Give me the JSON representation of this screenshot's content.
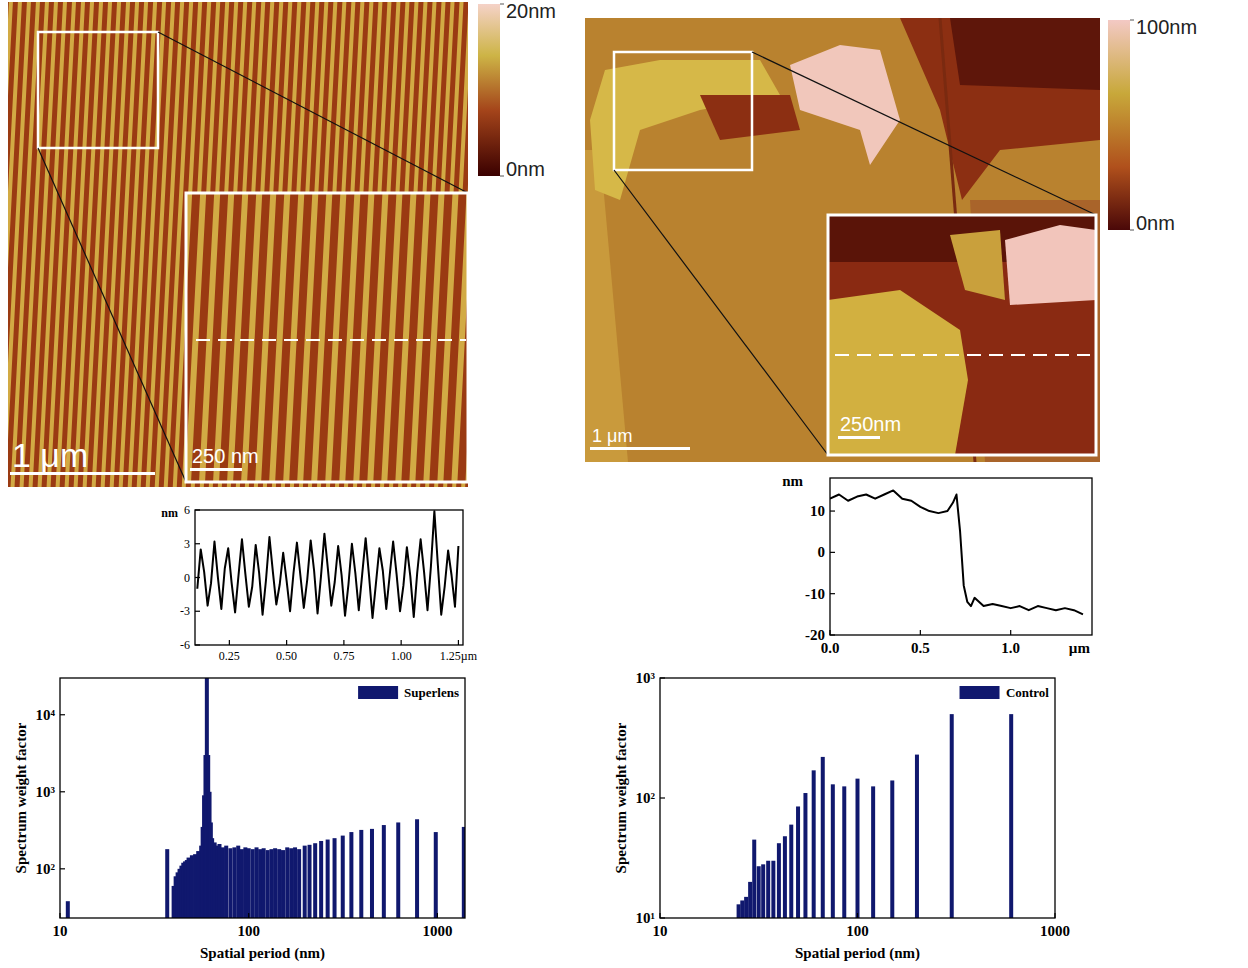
{
  "images": [
    {
      "colorbar": {
        "range": [
          0,
          20
        ],
        "ticks": [
          {
            "value": 20,
            "label": "20nm"
          },
          {
            "value": 0,
            "label": "0nm"
          }
        ]
      },
      "scalebar": "1 μm",
      "inset_scalebar": "250 nm"
    },
    {
      "colorbar": {
        "range": [
          0,
          100
        ],
        "ticks": [
          {
            "value": 100,
            "label": "100nm"
          },
          {
            "value": 0,
            "label": "0nm"
          }
        ]
      },
      "scalebar": "1 μm",
      "inset_scalebar": "250nm"
    }
  ],
  "chart_data": [
    {
      "type": "line",
      "ylabel": "nm",
      "x": [
        0.11,
        0.125,
        0.14,
        0.155,
        0.17,
        0.185,
        0.2,
        0.215,
        0.23,
        0.245,
        0.26,
        0.275,
        0.29,
        0.305,
        0.32,
        0.335,
        0.35,
        0.365,
        0.38,
        0.395,
        0.41,
        0.425,
        0.44,
        0.455,
        0.47,
        0.485,
        0.5,
        0.515,
        0.53,
        0.545,
        0.56,
        0.575,
        0.59,
        0.605,
        0.62,
        0.635,
        0.65,
        0.665,
        0.68,
        0.695,
        0.71,
        0.725,
        0.74,
        0.755,
        0.77,
        0.785,
        0.8,
        0.815,
        0.83,
        0.845,
        0.86,
        0.875,
        0.89,
        0.905,
        0.92,
        0.935,
        0.95,
        0.965,
        0.98,
        0.995,
        1.01,
        1.025,
        1.04,
        1.055,
        1.07,
        1.085,
        1.1,
        1.115,
        1.13,
        1.145,
        1.16,
        1.175,
        1.19,
        1.205,
        1.22,
        1.235,
        1.25
      ],
      "values": [
        -1,
        2.5,
        0.5,
        -2.5,
        -0.5,
        3.2,
        0,
        -2.8,
        0.8,
        2.6,
        -0.5,
        -3.1,
        0.2,
        3.4,
        0.3,
        -2.6,
        -0.8,
        2.9,
        0.4,
        -3.3,
        -0.2,
        3.6,
        0.5,
        -2.4,
        -0.6,
        2.2,
        -0.3,
        -3,
        0.4,
        3.1,
        0.2,
        -2.7,
        -0.2,
        3.3,
        0.6,
        -3.2,
        0.1,
        3.9,
        0.8,
        -2.5,
        -0.4,
        2.8,
        0.2,
        -3.4,
        -0.6,
        3,
        0.4,
        -2.9,
        0.3,
        3.5,
        0.1,
        -3.6,
        -0.5,
        2.6,
        0.6,
        -2.8,
        0.2,
        3.2,
        0.3,
        -3,
        -0.7,
        2.7,
        0.1,
        -3.5,
        0.4,
        3.4,
        0.5,
        -2.9,
        1,
        5.9,
        1.2,
        -3.3,
        -0.8,
        2.4,
        0.2,
        -2.6,
        2.8
      ],
      "xlim": [
        0.1,
        1.27
      ],
      "ylim": [
        -6,
        6
      ],
      "xticks": [
        0.25,
        {
          "value": 0.5,
          "label": "0.50"
        },
        0.75,
        {
          "value": 1,
          "label": "1.00"
        },
        {
          "value": 1.25,
          "label": "1.25µm"
        }
      ],
      "yticks": [
        -6,
        -3,
        0,
        3,
        6
      ]
    },
    {
      "type": "line",
      "ylabel": "nm",
      "xlabel": "µm",
      "x": [
        0,
        0.05,
        0.1,
        0.15,
        0.2,
        0.25,
        0.3,
        0.35,
        0.4,
        0.45,
        0.5,
        0.55,
        0.6,
        0.65,
        0.68,
        0.7,
        0.72,
        0.74,
        0.76,
        0.78,
        0.8,
        0.85,
        0.9,
        0.95,
        1,
        1.05,
        1.1,
        1.15,
        1.2,
        1.25,
        1.3,
        1.35,
        1.4
      ],
      "values": [
        13,
        14,
        12.5,
        13.5,
        14,
        13,
        14,
        15,
        13,
        12.5,
        11,
        10,
        9.5,
        10,
        12,
        14,
        5,
        -8,
        -12,
        -13,
        -11,
        -13,
        -12.5,
        -13,
        -13.5,
        -13,
        -14,
        -13,
        -13.5,
        -14,
        -13.5,
        -14,
        -15
      ],
      "xlim": [
        0,
        1.45
      ],
      "ylim": [
        -20,
        18
      ],
      "xticks": [
        {
          "value": 0,
          "label": "0.0"
        },
        0.5,
        {
          "value": 1,
          "label": "1.0"
        }
      ],
      "yticks": [
        -20,
        -10,
        0,
        10
      ]
    },
    {
      "type": "bar",
      "log": true,
      "legend": "top-right",
      "xlabel": "Spatial period (nm)",
      "ylabel": "Spectrum weight factor",
      "x": [
        11,
        37,
        40,
        41,
        42,
        43,
        44,
        45,
        46,
        47,
        48,
        50,
        52,
        54,
        56,
        57,
        58,
        59,
        60,
        61,
        62,
        63,
        64,
        66,
        68,
        70,
        73,
        76,
        80,
        84,
        88,
        92,
        96,
        100,
        105,
        110,
        115,
        120,
        126,
        132,
        138,
        145,
        152,
        160,
        168,
        176,
        185,
        198,
        210,
        225,
        242,
        262,
        285,
        315,
        350,
        395,
        450,
        520,
        620,
        780,
        980,
        1380
      ],
      "series": [
        {
          "name": "Superlens",
          "color": "#10186e",
          "values": [
            38,
            180,
            60,
            80,
            90,
            100,
            110,
            120,
            125,
            130,
            140,
            150,
            155,
            170,
            200,
            350,
            900,
            3000,
            30000,
            3000,
            1000,
            400,
            250,
            220,
            200,
            210,
            190,
            200,
            185,
            190,
            200,
            180,
            190,
            185,
            180,
            190,
            180,
            185,
            175,
            180,
            185,
            180,
            175,
            190,
            185,
            190,
            180,
            200,
            205,
            215,
            230,
            240,
            250,
            270,
            300,
            320,
            330,
            370,
            400,
            440,
            300,
            350
          ]
        }
      ],
      "xlim": [
        10,
        1400
      ],
      "ylim": [
        23,
        30000
      ],
      "xticks": [
        10,
        100,
        1000
      ],
      "yticks": [
        {
          "value": 100,
          "label": "10²"
        },
        {
          "value": 1000,
          "label": "10³"
        },
        {
          "value": 10000,
          "label": "10⁴"
        }
      ]
    },
    {
      "type": "bar",
      "log": true,
      "legend": "top-right",
      "xlabel": "Spatial period (nm)",
      "ylabel": "Spectrum weight factor",
      "x": [
        600,
        300,
        200,
        150,
        120,
        100,
        85.7,
        75,
        66.7,
        60,
        54.5,
        50,
        46.2,
        42.9,
        40,
        37.5,
        35.3,
        33.3,
        31.6,
        30,
        28.6,
        27.3,
        26.1,
        25
      ],
      "series": [
        {
          "name": "Control",
          "color": "#10186e",
          "values": [
            500,
            500,
            230,
            140,
            125,
            145,
            125,
            130,
            220,
            170,
            110,
            85,
            60,
            48,
            42,
            30,
            30,
            28,
            27,
            45,
            20,
            15,
            14,
            13
          ]
        }
      ],
      "xlim": [
        10,
        1000
      ],
      "ylim": [
        10,
        1000
      ],
      "xticks": [
        10,
        100,
        1000
      ],
      "yticks": [
        {
          "value": 10,
          "label": "10¹"
        },
        {
          "value": 100,
          "label": "10²"
        },
        {
          "value": 1000,
          "label": "10³"
        }
      ]
    }
  ]
}
